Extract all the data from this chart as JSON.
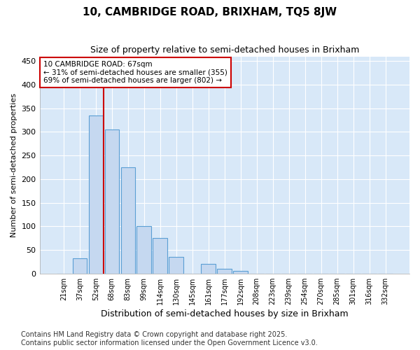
{
  "title": "10, CAMBRIDGE ROAD, BRIXHAM, TQ5 8JW",
  "subtitle": "Size of property relative to semi-detached houses in Brixham",
  "xlabel": "Distribution of semi-detached houses by size in Brixham",
  "ylabel": "Number of semi-detached properties",
  "categories": [
    "21sqm",
    "37sqm",
    "52sqm",
    "68sqm",
    "83sqm",
    "99sqm",
    "114sqm",
    "130sqm",
    "145sqm",
    "161sqm",
    "177sqm",
    "192sqm",
    "208sqm",
    "223sqm",
    "239sqm",
    "254sqm",
    "270sqm",
    "285sqm",
    "301sqm",
    "316sqm",
    "332sqm"
  ],
  "values": [
    0,
    33,
    335,
    305,
    225,
    100,
    75,
    35,
    0,
    20,
    10,
    5,
    0,
    0,
    0,
    0,
    0,
    0,
    0,
    0,
    0
  ],
  "bar_color": "#c5d8f0",
  "bar_edge_color": "#5a9fd4",
  "ylim": [
    0,
    460
  ],
  "yticks": [
    0,
    50,
    100,
    150,
    200,
    250,
    300,
    350,
    400,
    450
  ],
  "vline_x": 2.5,
  "vline_color": "#cc0000",
  "annotation_text": "10 CAMBRIDGE ROAD: 67sqm\n← 31% of semi-detached houses are smaller (355)\n69% of semi-detached houses are larger (802) →",
  "annotation_box_color": "#cc0000",
  "footnote": "Contains HM Land Registry data © Crown copyright and database right 2025.\nContains public sector information licensed under the Open Government Licence v3.0.",
  "fig_background_color": "#ffffff",
  "plot_bg_color": "#d8e8f8",
  "grid_color": "#ffffff",
  "title_fontsize": 11,
  "subtitle_fontsize": 9,
  "xlabel_fontsize": 9,
  "footnote_fontsize": 7
}
